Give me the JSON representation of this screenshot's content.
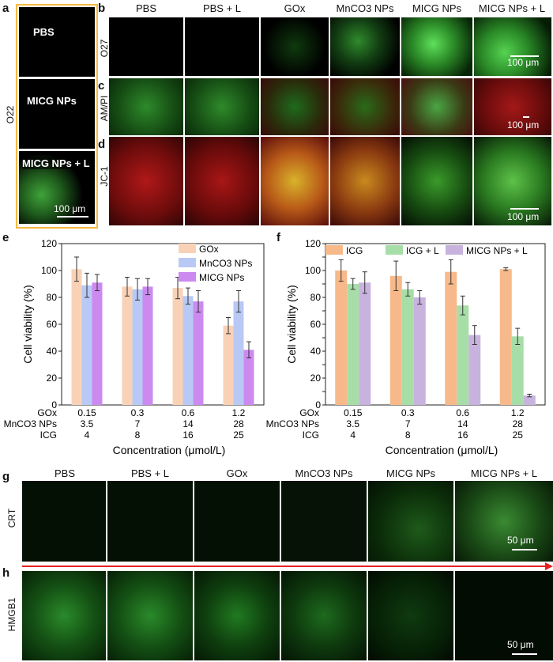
{
  "panel_letters": {
    "a": "a",
    "b": "b",
    "c": "c",
    "d": "d",
    "e": "e",
    "f": "f",
    "g": "g",
    "h": "h"
  },
  "panel_a": {
    "row_label": "O22",
    "tiles": [
      "PBS",
      "MICG NPs",
      "MICG NPs + L"
    ],
    "scale_bar": "100 μm",
    "frame_color": "#f5b942"
  },
  "top_columns": [
    "PBS",
    "PBS + L",
    "GOx",
    "MnCO3 NPs",
    "MICG NPs",
    "MICG NPs + L"
  ],
  "rows_bcd": [
    {
      "letter": "b",
      "label": "O27",
      "scale_bar": "100 μm"
    },
    {
      "letter": "c",
      "label": "AM/PI",
      "scale_bar": "100 μm"
    },
    {
      "letter": "d",
      "label": "JC-1",
      "scale_bar": "100 μm"
    }
  ],
  "bottom_columns": [
    "PBS",
    "PBS + L",
    "GOx",
    "MnCO3 NPs",
    "MICG NPs",
    "MICG NPs + L"
  ],
  "rows_gh": [
    {
      "letter": "g",
      "label": "CRT",
      "scale_bar": "50 μm"
    },
    {
      "letter": "h",
      "label": "HMGB1",
      "scale_bar": "50 μm"
    }
  ],
  "chart_data": [
    {
      "panel": "e",
      "type": "bar",
      "ylabel": "Cell viability (%)",
      "xlabel": "Concentration (μmol/L)",
      "ylim": [
        0,
        120
      ],
      "yticks": [
        0,
        20,
        40,
        60,
        80,
        100,
        120
      ],
      "categories": [
        "0.15",
        "0.3",
        "0.6",
        "1.2"
      ],
      "concentration_rows": [
        {
          "label": "GOx",
          "values": [
            "0.15",
            "0.3",
            "0.6",
            "1.2"
          ]
        },
        {
          "label": "MnCO3 NPs",
          "values": [
            "3.5",
            "7",
            "14",
            "28"
          ]
        },
        {
          "label": "ICG",
          "values": [
            "4",
            "8",
            "16",
            "25"
          ]
        }
      ],
      "legend_position": "top-right",
      "series": [
        {
          "name": "GOx",
          "color": "#f9d2b6",
          "values": [
            101,
            88,
            87,
            59
          ],
          "errors": [
            9,
            7,
            8,
            6
          ]
        },
        {
          "name": "MnCO3 NPs",
          "color": "#b9c9f5",
          "values": [
            89,
            86,
            81,
            77
          ],
          "errors": [
            9,
            8,
            6,
            8
          ]
        },
        {
          "name": "MICG NPs",
          "color": "#cc8af0",
          "values": [
            91,
            88,
            77,
            41
          ],
          "errors": [
            6,
            6,
            8,
            6
          ]
        }
      ]
    },
    {
      "panel": "f",
      "type": "bar",
      "ylabel": "Cell viability (%)",
      "xlabel": "Concentration (μmol/L)",
      "ylim": [
        0,
        120
      ],
      "yticks": [
        0,
        10,
        20,
        30,
        40,
        50,
        60,
        70,
        80,
        90,
        100,
        110,
        120
      ],
      "categories": [
        "0.15",
        "0.3",
        "0.6",
        "1.2"
      ],
      "concentration_rows": [
        {
          "label": "GOx",
          "values": [
            "0.15",
            "0.3",
            "0.6",
            "1.2"
          ]
        },
        {
          "label": "MnCO3 NPs",
          "values": [
            "3.5",
            "7",
            "14",
            "28"
          ]
        },
        {
          "label": "ICG",
          "values": [
            "4",
            "8",
            "16",
            "25"
          ]
        }
      ],
      "legend_position": "top",
      "series": [
        {
          "name": "ICG",
          "color": "#f7b98a",
          "values": [
            100,
            96,
            99,
            101
          ],
          "errors": [
            8,
            11,
            9,
            1
          ]
        },
        {
          "name": "ICG + L",
          "color": "#a7dea8",
          "values": [
            90,
            86,
            74,
            51
          ],
          "errors": [
            4,
            5,
            7,
            6
          ]
        },
        {
          "name": "MICG NPs + L",
          "color": "#c7b3de",
          "values": [
            91,
            80,
            52,
            7
          ],
          "errors": [
            8,
            5,
            7,
            1
          ]
        }
      ]
    }
  ]
}
